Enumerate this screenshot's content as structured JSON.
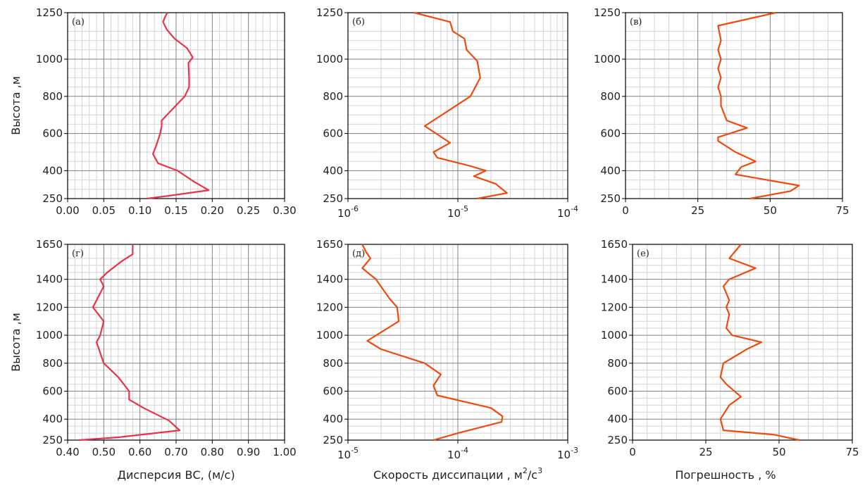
{
  "labels": {
    "y_top": "Высота ,м",
    "y_bottom": "Высота ,м",
    "x_disp": "Дисперсия ВС, (м/с)",
    "x_diss_pre": "Скорость диссипации ,  м",
    "x_diss_sup1": "2",
    "x_diss_mid": "/с",
    "x_diss_sup2": "3",
    "x_err": "Погрешность , %"
  },
  "colors": {
    "red": "#e8334a",
    "orange": "#f04a0c",
    "grid_major": "#808080",
    "grid_minor": "#d4d4d4"
  },
  "chart_data": [
    {
      "type": "line",
      "label": "(а)",
      "xscale": "linear",
      "xlim": [
        0,
        0.3
      ],
      "ylim": [
        250,
        1250
      ],
      "xticks": [
        "0.00",
        "0.05",
        "0.10",
        "0.15",
        "0.20",
        "0.25",
        "0.30"
      ],
      "yticks": [
        "250",
        "400",
        "600",
        "800",
        "1000",
        "1250"
      ],
      "series": [
        {
          "color": "red",
          "x": [
            0.11,
            0.14,
            0.195,
            0.175,
            0.152,
            0.125,
            0.118,
            0.122,
            0.128,
            0.13,
            0.13,
            0.152,
            0.162,
            0.168,
            0.168,
            0.167,
            0.173,
            0.165,
            0.148,
            0.137,
            0.132,
            0.135,
            0.138
          ],
          "y": [
            250,
            265,
            295,
            340,
            400,
            440,
            490,
            530,
            600,
            640,
            670,
            760,
            800,
            850,
            900,
            980,
            1010,
            1060,
            1110,
            1160,
            1200,
            1230,
            1250
          ]
        }
      ]
    },
    {
      "type": "line",
      "label": "(б)",
      "xscale": "log",
      "xlim": [
        1e-06,
        0.0001
      ],
      "ylim": [
        250,
        1250
      ],
      "xticks": [
        "10^-6",
        "10^-5",
        "10^-4"
      ],
      "yticks": [
        "250",
        "400",
        "600",
        "800",
        "1000",
        "1250"
      ],
      "series": [
        {
          "color": "orange",
          "x": [
            1.5e-05,
            2.8e-05,
            2.2e-05,
            1.4e-05,
            1.8e-05,
            1.3e-05,
            6.5e-06,
            6e-06,
            8.5e-06,
            5e-06,
            1.3e-05,
            1.6e-05,
            1.5e-05,
            1.2e-05,
            1.15e-05,
            9e-06,
            8.5e-06,
            4e-06
          ],
          "y": [
            250,
            280,
            330,
            370,
            400,
            425,
            470,
            500,
            550,
            640,
            800,
            900,
            990,
            1050,
            1110,
            1150,
            1200,
            1250
          ]
        }
      ]
    },
    {
      "type": "line",
      "label": "(в)",
      "xscale": "linear",
      "xlim": [
        0,
        75
      ],
      "ylim": [
        250,
        1250
      ],
      "xticks": [
        "0",
        "25",
        "50",
        "75"
      ],
      "yticks": [
        "250",
        "400",
        "600",
        "800",
        "1000",
        "1250"
      ],
      "series": [
        {
          "color": "orange",
          "x": [
            43,
            57,
            60,
            38,
            40,
            45,
            38,
            32,
            32,
            42,
            35,
            33,
            33,
            32,
            33,
            32,
            33,
            32,
            33,
            32,
            52
          ],
          "y": [
            250,
            290,
            320,
            380,
            420,
            450,
            500,
            560,
            580,
            630,
            670,
            750,
            800,
            850,
            900,
            950,
            1000,
            1050,
            1100,
            1180,
            1250
          ]
        }
      ]
    },
    {
      "type": "line",
      "label": "(г)",
      "xscale": "linear",
      "xlim": [
        0.4,
        1.0
      ],
      "ylim": [
        250,
        1650
      ],
      "xticks": [
        "0.40",
        "0.50",
        "0.60",
        "0.70",
        "0.80",
        "0.90",
        "1.00"
      ],
      "yticks": [
        "250",
        "400",
        "600",
        "800",
        "1000",
        "1200",
        "1400",
        "1650"
      ],
      "series": [
        {
          "color": "red",
          "x": [
            0.43,
            0.54,
            0.71,
            0.68,
            0.61,
            0.57,
            0.57,
            0.54,
            0.5,
            0.48,
            0.49,
            0.5,
            0.47,
            0.49,
            0.5,
            0.49,
            0.51,
            0.55,
            0.58,
            0.58,
            0.58
          ],
          "y": [
            250,
            270,
            320,
            390,
            480,
            540,
            600,
            700,
            800,
            950,
            1000,
            1100,
            1200,
            1300,
            1350,
            1400,
            1450,
            1530,
            1580,
            1620,
            1650
          ]
        }
      ]
    },
    {
      "type": "line",
      "label": "(д)",
      "xscale": "log",
      "xlim": [
        1e-05,
        0.001
      ],
      "ylim": [
        250,
        1650
      ],
      "xticks": [
        "10^-5",
        "10^-4",
        "10^-3"
      ],
      "yticks": [
        "250",
        "400",
        "600",
        "800",
        "1000",
        "1200",
        "1400",
        "1650"
      ],
      "series": [
        {
          "color": "orange",
          "x": [
            6e-05,
            0.0001,
            0.00025,
            0.000255,
            0.0002,
            6.5e-05,
            6e-05,
            7e-05,
            5e-05,
            2e-05,
            1.5e-05,
            2.9e-05,
            2.8e-05,
            2.4e-05,
            1.95e-05,
            1.8e-05,
            1.35e-05,
            1.6e-05,
            1.45e-05,
            1.35e-05
          ],
          "y": [
            250,
            300,
            380,
            420,
            480,
            570,
            640,
            720,
            800,
            900,
            960,
            1100,
            1200,
            1260,
            1360,
            1400,
            1480,
            1550,
            1600,
            1650
          ]
        }
      ]
    },
    {
      "type": "line",
      "label": "(е)",
      "xscale": "linear",
      "xlim": [
        0,
        75
      ],
      "ylim": [
        250,
        1650
      ],
      "xticks": [
        "0",
        "25",
        "50",
        "75"
      ],
      "yticks": [
        "250",
        "400",
        "600",
        "800",
        "1000",
        "1200",
        "1400",
        "1650"
      ],
      "series": [
        {
          "color": "orange",
          "x": [
            57,
            48,
            31,
            30,
            33,
            37,
            32,
            30,
            31,
            39,
            44,
            34,
            32,
            33,
            32,
            33,
            31,
            33,
            42,
            33,
            37
          ],
          "y": [
            250,
            290,
            320,
            400,
            500,
            560,
            650,
            700,
            800,
            900,
            950,
            1000,
            1050,
            1150,
            1200,
            1250,
            1350,
            1400,
            1480,
            1550,
            1650
          ]
        }
      ]
    }
  ]
}
